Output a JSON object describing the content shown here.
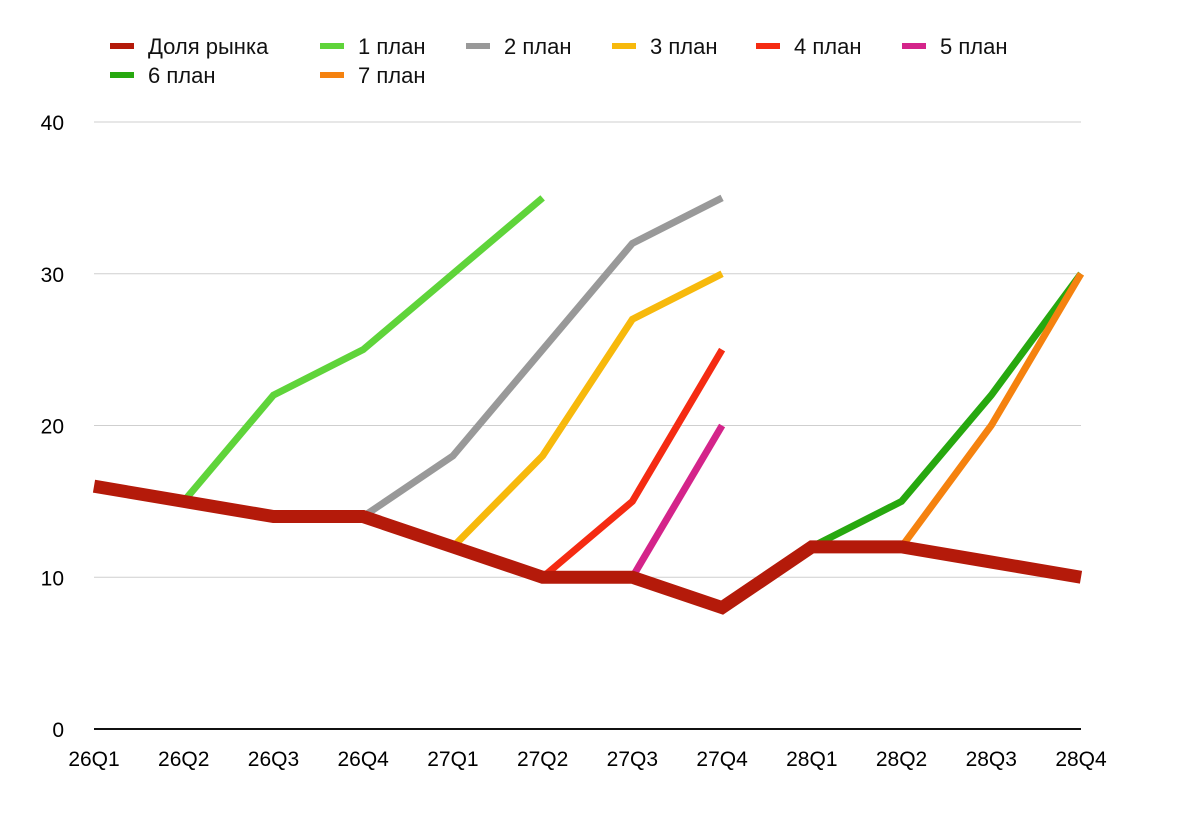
{
  "chart_data": {
    "type": "line",
    "title": "",
    "xlabel": "",
    "ylabel": "",
    "categories": [
      "26Q1",
      "26Q2",
      "26Q3",
      "26Q4",
      "27Q1",
      "27Q2",
      "27Q3",
      "27Q4",
      "28Q1",
      "28Q2",
      "28Q3",
      "28Q4"
    ],
    "yticks": [
      "0",
      "10",
      "20",
      "30",
      "40"
    ],
    "ylim": [
      0,
      40
    ],
    "grid": true,
    "legend_position": "top-left",
    "series": [
      {
        "name": "Доля рынка",
        "color": "#b41a0a",
        "values": [
          16,
          15,
          14,
          14,
          12,
          10,
          10,
          8,
          12,
          12,
          11,
          10
        ]
      },
      {
        "name": "1 план",
        "color": "#5fd43a",
        "values": [
          null,
          15,
          22,
          25,
          30,
          35,
          null,
          null,
          null,
          null,
          null,
          null
        ]
      },
      {
        "name": "2 план",
        "color": "#999999",
        "values": [
          null,
          null,
          null,
          14,
          18,
          25,
          32,
          35,
          null,
          null,
          null,
          null
        ]
      },
      {
        "name": "3 план",
        "color": "#f7b90c",
        "values": [
          null,
          null,
          null,
          null,
          12,
          18,
          27,
          30,
          null,
          null,
          null,
          null
        ]
      },
      {
        "name": "4 план",
        "color": "#f52b12",
        "values": [
          null,
          null,
          null,
          null,
          null,
          10,
          15,
          25,
          null,
          null,
          null,
          null
        ]
      },
      {
        "name": "5 план",
        "color": "#d4248a",
        "values": [
          null,
          null,
          null,
          null,
          null,
          null,
          10,
          20,
          null,
          null,
          null,
          null
        ]
      },
      {
        "name": "6 план",
        "color": "#27a80f",
        "values": [
          null,
          null,
          null,
          null,
          null,
          null,
          null,
          null,
          12,
          15,
          22,
          30
        ]
      },
      {
        "name": "7 план",
        "color": "#f5820f",
        "values": [
          null,
          null,
          null,
          null,
          null,
          null,
          null,
          null,
          null,
          12,
          20,
          30
        ]
      }
    ]
  }
}
